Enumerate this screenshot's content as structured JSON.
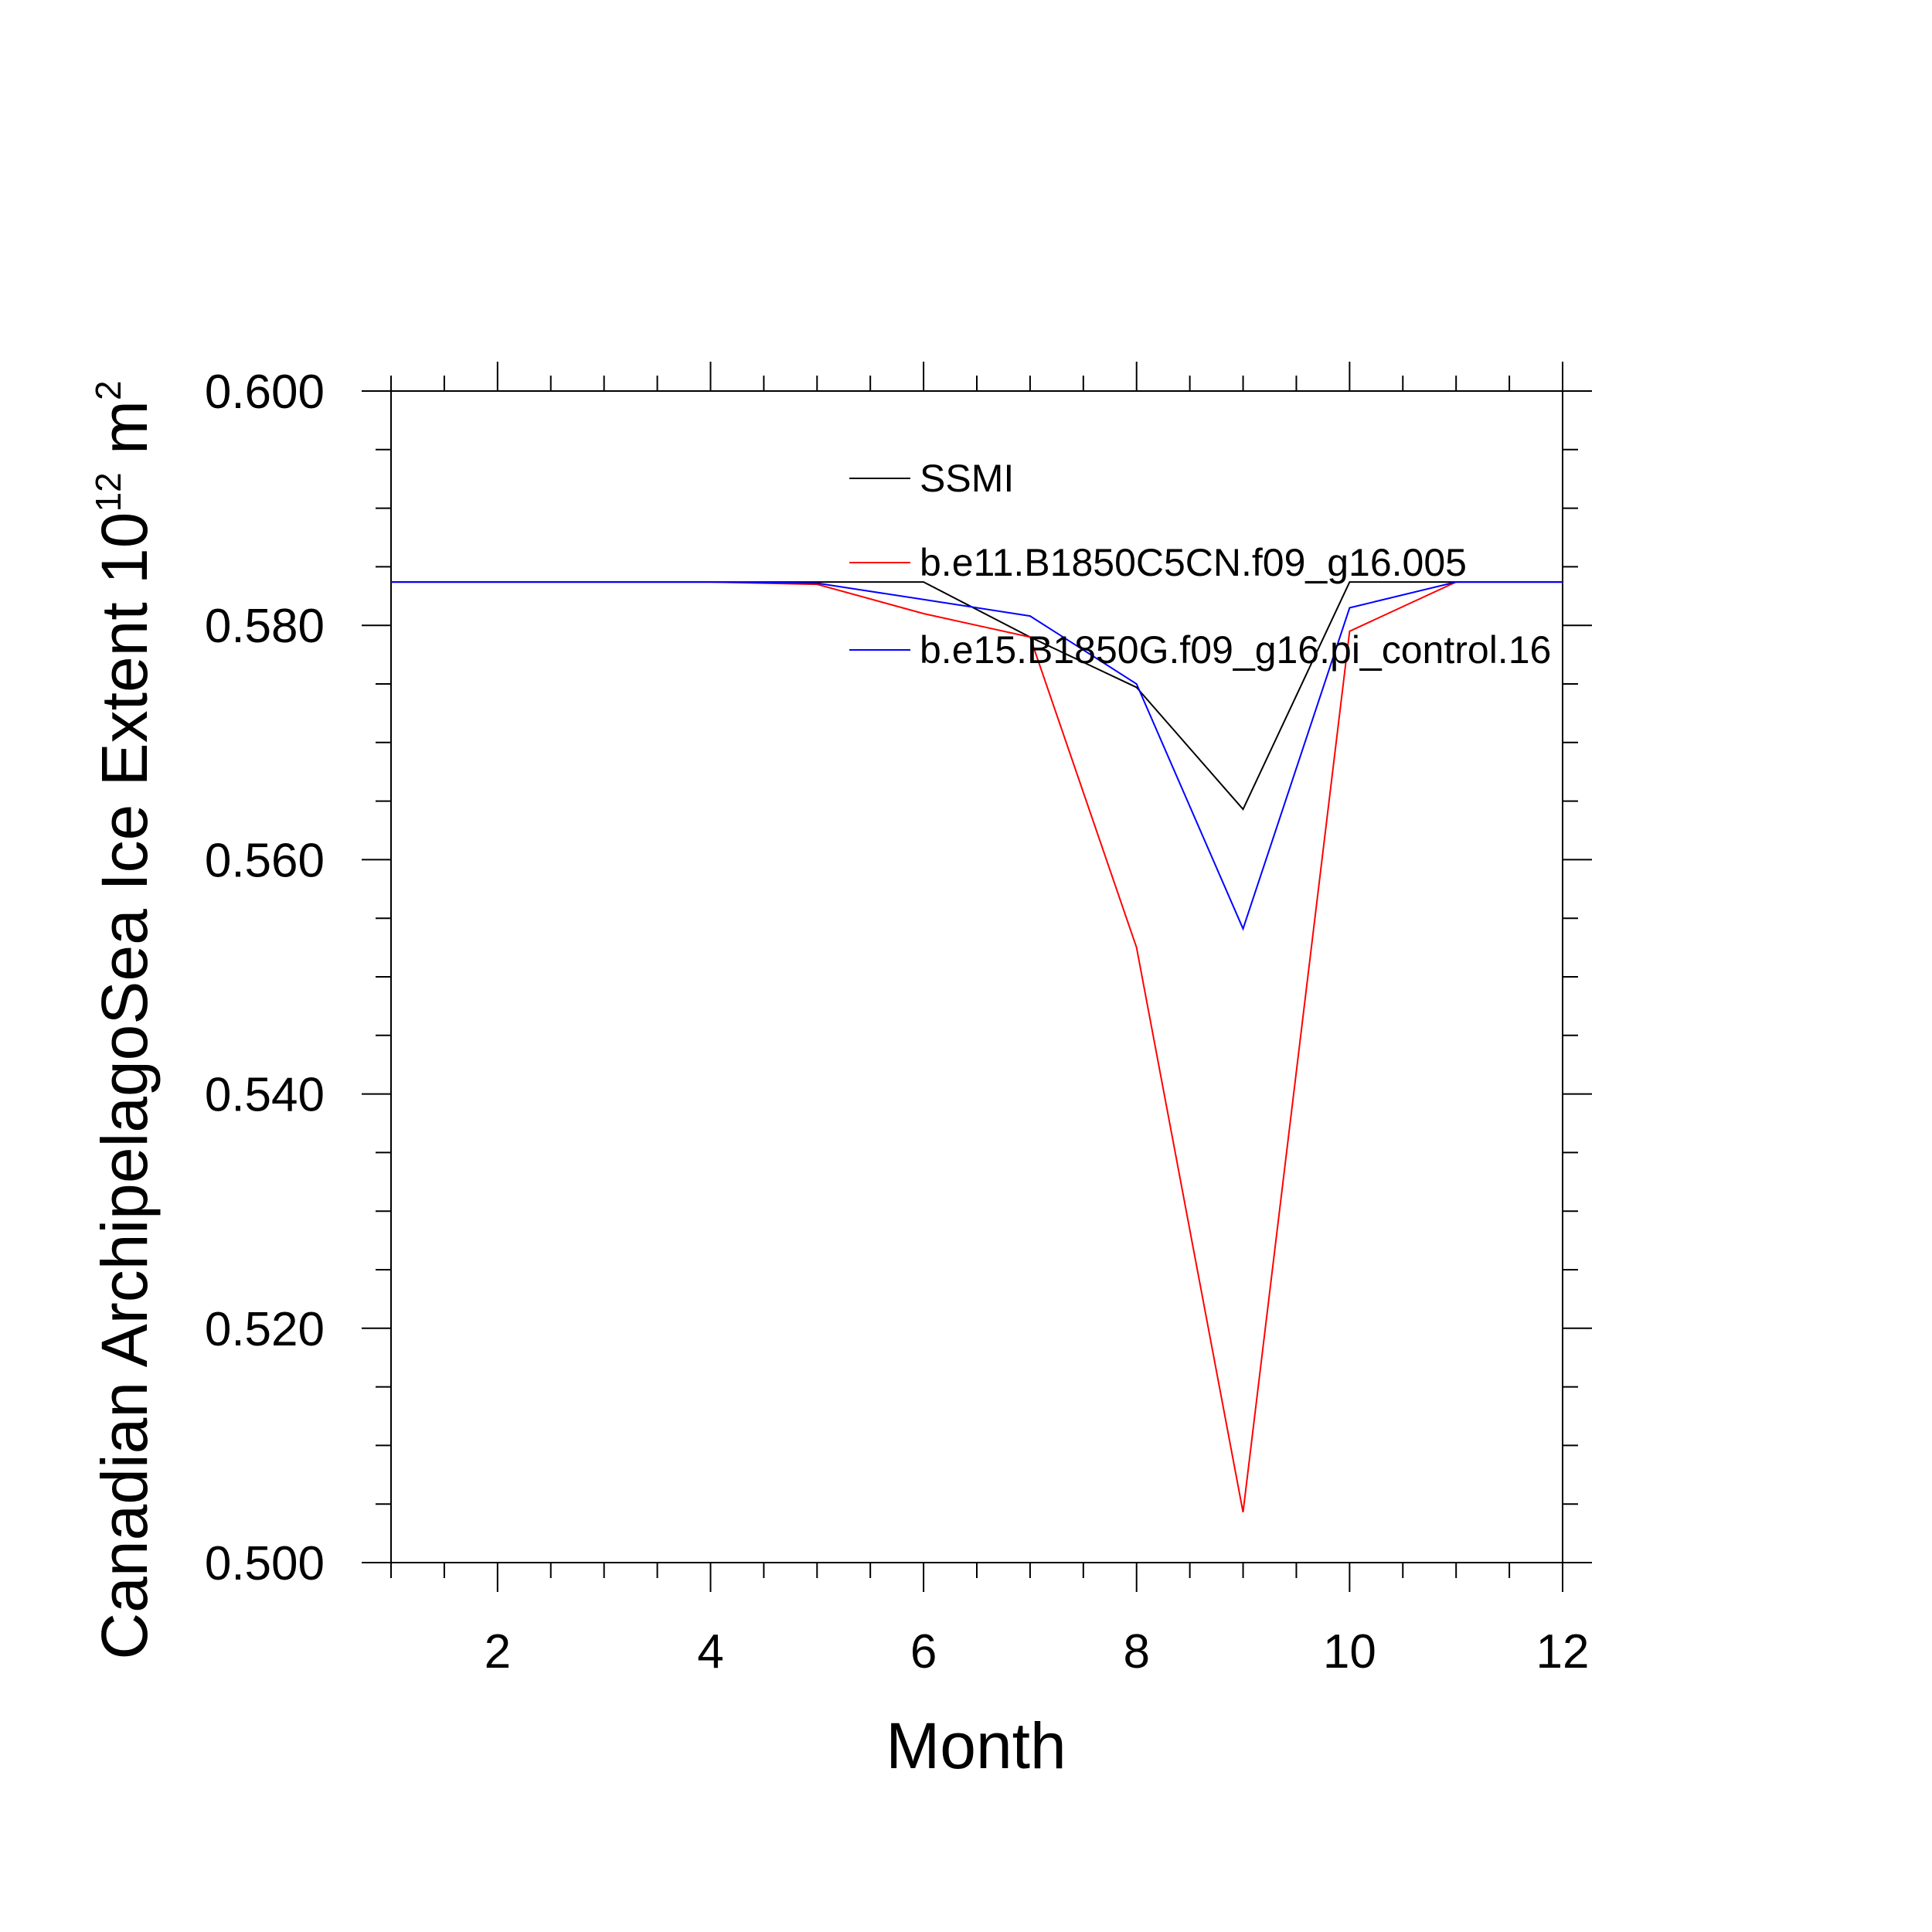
{
  "chart_data": {
    "type": "line",
    "xlabel": "Month",
    "ylabel_main": "Canadian ArchipelagoSea Ice Extent 10",
    "ylabel_exp": "12",
    "ylabel_unit": " m",
    "ylabel_unit_exp": "2",
    "xlim": [
      1,
      12
    ],
    "ylim": [
      0.5,
      0.6
    ],
    "x_ticks": [
      "2",
      "4",
      "6",
      "8",
      "10",
      "12"
    ],
    "y_ticks": [
      "0.500",
      "0.520",
      "0.540",
      "0.560",
      "0.580",
      "0.600"
    ],
    "grid": false,
    "legend_position": "upper-center",
    "x": [
      1,
      2,
      3,
      4,
      5,
      6,
      7,
      8,
      9,
      10,
      11,
      12
    ],
    "series": [
      {
        "name": "SSMI",
        "color": "#000000",
        "values": [
          0.5837,
          0.5837,
          0.5837,
          0.5837,
          0.5837,
          0.5837,
          0.579,
          0.5747,
          0.5643,
          0.5837,
          0.5837,
          0.5837
        ]
      },
      {
        "name": "b.e11.B1850C5CN.f09_g16.005",
        "color": "#ff0000",
        "values": [
          0.5837,
          0.5837,
          0.5837,
          0.5837,
          0.5835,
          0.581,
          0.579,
          0.5525,
          0.5043,
          0.5795,
          0.5837,
          0.5837
        ]
      },
      {
        "name": "b.e15.B1850G.f09_g16.pi_control.16",
        "color": "#0000ff",
        "values": [
          0.5837,
          0.5837,
          0.5837,
          0.5837,
          0.5836,
          0.5822,
          0.5808,
          0.575,
          0.5541,
          0.5815,
          0.5837,
          0.5837
        ]
      }
    ]
  }
}
